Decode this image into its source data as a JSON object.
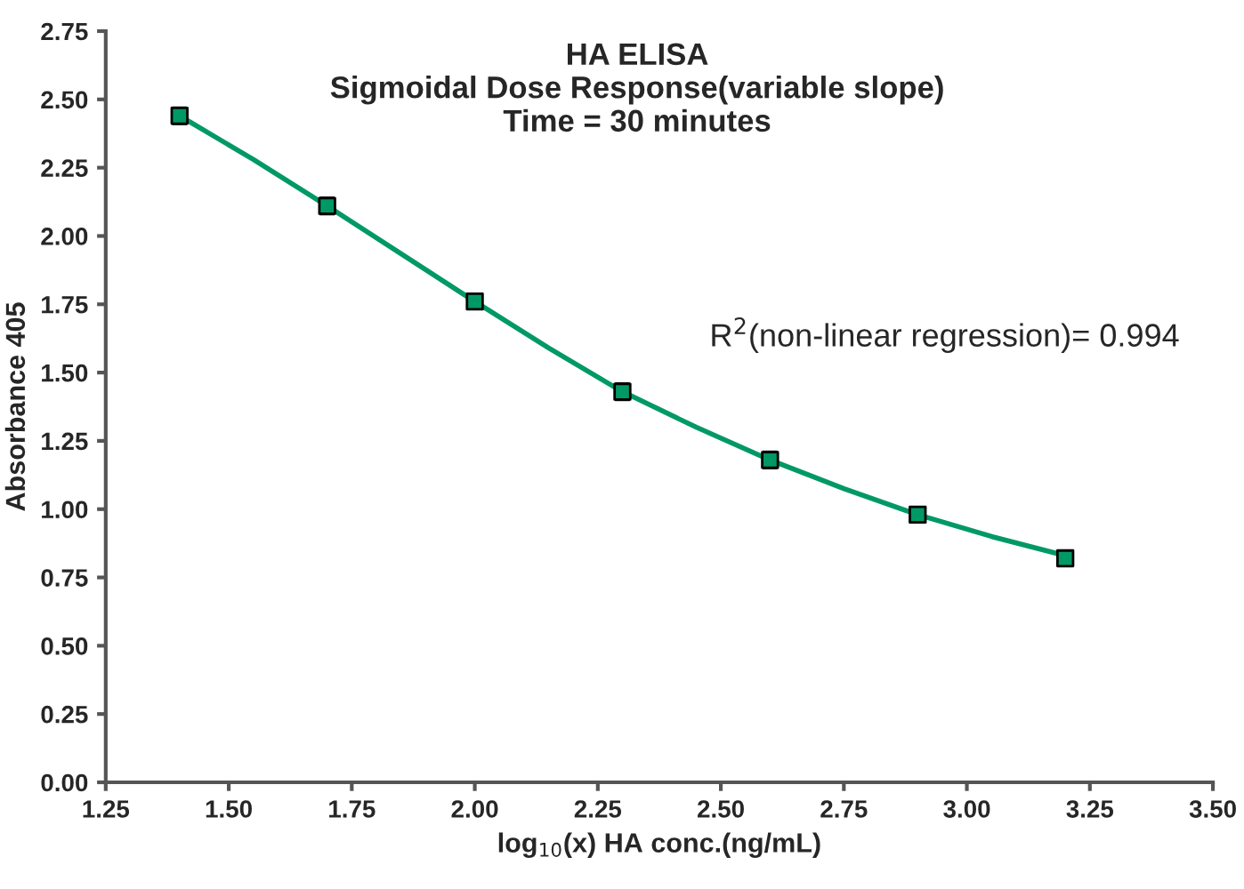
{
  "chart_data": {
    "type": "scatter",
    "title": "HA ELISA\nSigmoidal Dose Response(variable slope)\nTime = 30 minutes",
    "xlabel": "log$_{10}$(x) HA conc.(ng/mL)",
    "ylabel": "Absorbance 405",
    "annotations": [
      "R$^{2}$(non-linear regression)= 0.994"
    ],
    "series": [
      {
        "type": "line",
        "color": "#009966",
        "marker": "none",
        "line_style": "solid",
        "x": [
          1.4,
          1.55,
          1.7,
          1.85,
          2.0,
          2.15,
          2.3,
          2.45,
          2.6,
          2.75,
          2.9,
          3.05,
          3.2
        ],
        "values": [
          2.44,
          2.28,
          2.11,
          1.935,
          1.76,
          1.59,
          1.43,
          1.3,
          1.18,
          1.075,
          0.98,
          0.9,
          0.83
        ]
      },
      {
        "color": "#009966",
        "marker": "square",
        "x": [
          1.4,
          1.7,
          2.0,
          2.3,
          2.6,
          2.9,
          3.2
        ],
        "values": [
          2.44,
          2.11,
          1.76,
          1.43,
          1.18,
          0.98,
          0.82
        ],
        "errors": [
          0.03,
          0.03,
          0.01,
          0.03,
          0.03,
          0.01,
          0.02
        ]
      }
    ],
    "xlim": [
      1.25,
      3.5
    ],
    "xticks": [
      {
        "value": 1.25,
        "label": "1.25"
      },
      {
        "value": 1.5,
        "label": "1.50"
      },
      {
        "value": 1.75,
        "label": "1.75"
      },
      {
        "value": 2.0,
        "label": "2.00"
      },
      {
        "value": 2.25,
        "label": "2.25"
      },
      {
        "value": 2.5,
        "label": "2.50"
      },
      {
        "value": 2.75,
        "label": "2.75"
      },
      {
        "value": 3.0,
        "label": "3.00"
      },
      {
        "value": 3.25,
        "label": "3.25"
      },
      {
        "value": 3.5,
        "label": "3.50"
      }
    ],
    "ylim": [
      0,
      2.75
    ],
    "yticks": [
      {
        "value": 0,
        "label": "0.00"
      },
      {
        "value": 0.25,
        "label": "0.25"
      },
      {
        "value": 0.5,
        "label": "0.50"
      },
      {
        "value": 0.75,
        "label": "0.75"
      },
      {
        "value": 1.0,
        "label": "1.00"
      },
      {
        "value": 1.25,
        "label": "1.25"
      },
      {
        "value": 1.5,
        "label": "1.50"
      },
      {
        "value": 1.75,
        "label": "1.75"
      },
      {
        "value": 2.0,
        "label": "2.00"
      },
      {
        "value": 2.25,
        "label": "2.25"
      },
      {
        "value": 2.5,
        "label": "2.50"
      },
      {
        "value": 2.75,
        "label": "2.75"
      }
    ],
    "grid": false,
    "legend": false
  }
}
